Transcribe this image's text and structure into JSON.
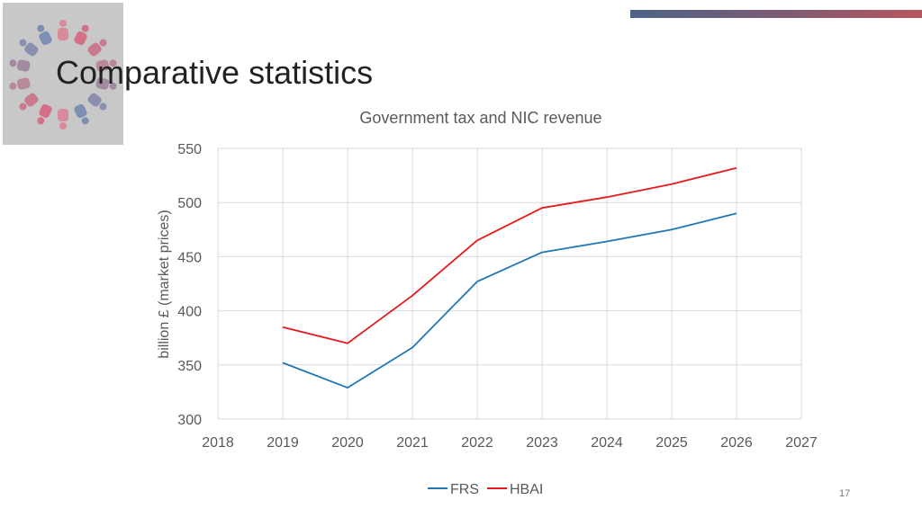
{
  "slide": {
    "title": "Comparative statistics",
    "page_number": "17"
  },
  "colors": {
    "frs": "#1f77b4",
    "hbai": "#e41a1c",
    "grid": "#d9d9d9",
    "accent_start": "#4d6386",
    "accent_end": "#b8565e"
  },
  "chart_data": {
    "type": "line",
    "title": "Government tax and NIC revenue",
    "xlabel": "",
    "ylabel": "billion £ (market prices)",
    "xlim": [
      2018,
      2027
    ],
    "ylim": [
      300,
      550
    ],
    "x_ticks": [
      2018,
      2019,
      2020,
      2021,
      2022,
      2023,
      2024,
      2025,
      2026,
      2027
    ],
    "y_ticks": [
      300,
      350,
      400,
      450,
      500,
      550
    ],
    "grid": true,
    "legend_position": "bottom",
    "x": [
      2019,
      2020,
      2021,
      2022,
      2023,
      2024,
      2025,
      2026
    ],
    "series": [
      {
        "name": "FRS",
        "color": "#1f77b4",
        "values": [
          352,
          329,
          366,
          427,
          454,
          464,
          475,
          490
        ]
      },
      {
        "name": "HBAI",
        "color": "#e41a1c",
        "values": [
          385,
          370,
          414,
          465,
          495,
          505,
          517,
          532
        ]
      }
    ]
  }
}
